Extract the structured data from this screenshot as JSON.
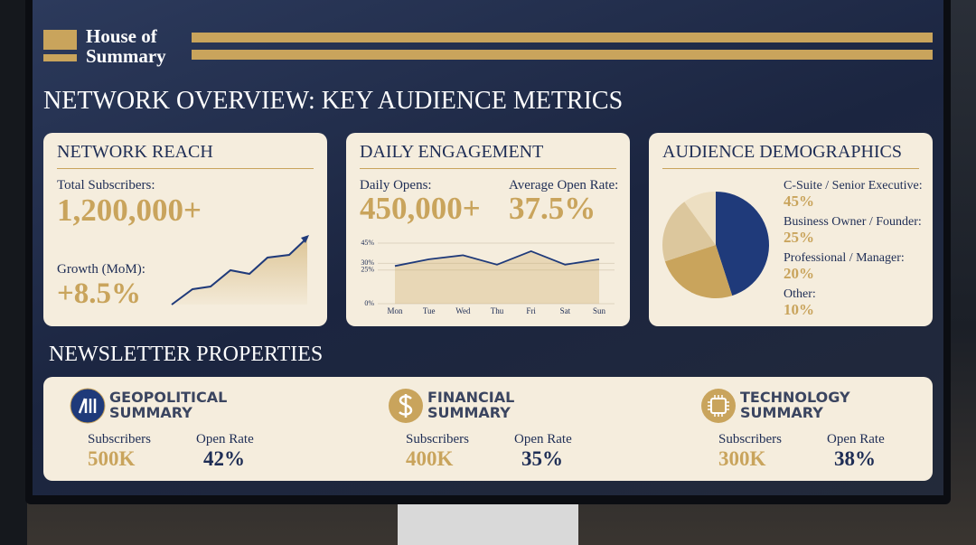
{
  "header": {
    "brand_lines": [
      "House of",
      "Summary"
    ],
    "title": "NETWORK OVERVIEW: KEY AUDIENCE METRICS"
  },
  "network_reach": {
    "title": "NETWORK REACH",
    "subscribers_label": "Total Subscribers:",
    "subscribers": "1,200,000+",
    "growth_label": "Growth (MoM):",
    "growth": "+8.5%"
  },
  "daily_engagement": {
    "title": "DAILY ENGAGEMENT",
    "opens_label": "Daily Opens:",
    "opens": "450,000+",
    "rate_label": "Average Open Rate:",
    "rate": "37.5%",
    "chart_data": {
      "type": "line",
      "categories": [
        "Mon",
        "Tue",
        "Wed",
        "Thu",
        "Fri",
        "Sat",
        "Sun"
      ],
      "values": [
        28,
        33,
        36,
        29,
        39,
        29,
        33
      ],
      "color": "#1f3a7a",
      "ylim": [
        0,
        45
      ],
      "yticks": [
        {
          "value": 0,
          "label": "0%"
        },
        {
          "value": 25,
          "label": "25%"
        },
        {
          "value": 30,
          "label": "30%"
        },
        {
          "value": 45,
          "label": "45%"
        }
      ],
      "grid": true
    }
  },
  "audience_demographics": {
    "title": "AUDIENCE DEMOGRAPHICS",
    "chart_data": {
      "type": "pie",
      "categories": [
        "C-Suite / Senior Executive:",
        "Business Owner / Founder:",
        "Professional / Manager:",
        "Other:"
      ],
      "values": [
        45,
        25,
        20,
        10
      ],
      "value_labels": [
        "45%",
        "25%",
        "20%",
        "10%"
      ],
      "colors": [
        "#1f3a7a",
        "#c9a45c",
        "#dcc79d",
        "#eddfc2"
      ]
    }
  },
  "newsletter_properties": {
    "title": "NEWSLETTER PROPERTIES",
    "items": [
      {
        "name_lines": [
          "GEOPOLITICAL",
          "SUMMARY"
        ],
        "subscribers_label": "Subscribers",
        "subscribers": "500K",
        "open_rate_label": "Open Rate",
        "open_rate": "42%"
      },
      {
        "name_lines": [
          "FINANCIAL",
          "SUMMARY"
        ],
        "subscribers_label": "Subscribers",
        "subscribers": "400K",
        "open_rate_label": "Open Rate",
        "open_rate": "35%"
      },
      {
        "name_lines": [
          "TECHNOLOGY",
          "SUMMARY"
        ],
        "subscribers_label": "Subscribers",
        "subscribers": "300K",
        "open_rate_label": "Open Rate",
        "open_rate": "38%"
      }
    ]
  }
}
